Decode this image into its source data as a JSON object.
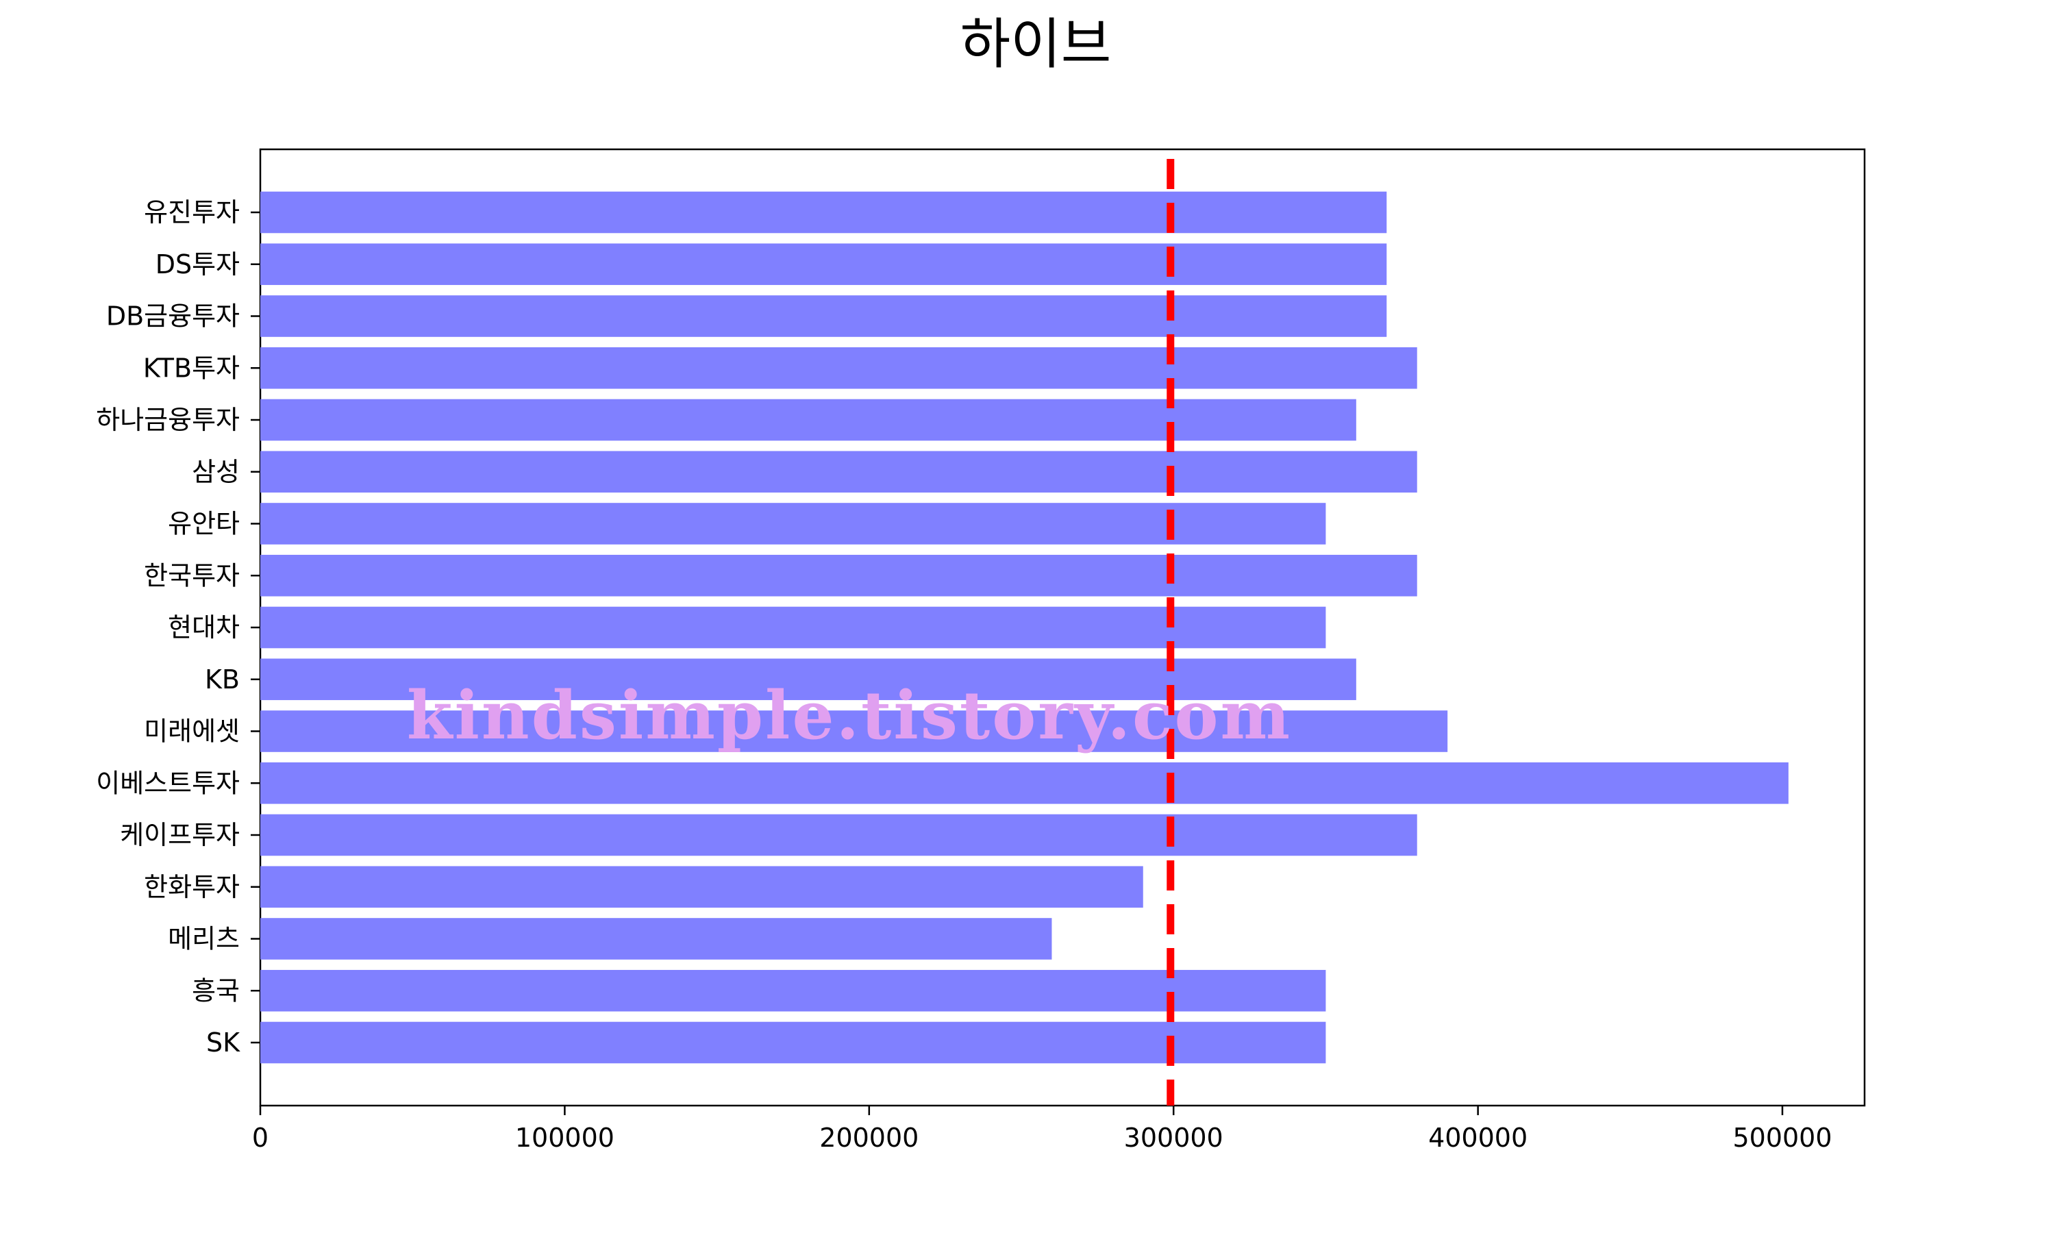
{
  "chart_data": {
    "type": "bar",
    "orientation": "horizontal",
    "title": "하이브",
    "xlabel": "",
    "ylabel": "",
    "categories": [
      "유진투자",
      "DS투자",
      "DB금융투자",
      "KTB투자",
      "하나금융투자",
      "삼성",
      "유안타",
      "한국투자",
      "현대차",
      "KB",
      "미래에셋",
      "이베스트투자",
      "케이프투자",
      "한화투자",
      "메리츠",
      "흥국",
      "SK"
    ],
    "values": [
      370000,
      370000,
      370000,
      380000,
      360000,
      380000,
      350000,
      380000,
      350000,
      360000,
      390000,
      502000,
      380000,
      290000,
      260000,
      350000,
      350000
    ],
    "x_ticks": [
      "0",
      "100000",
      "200000",
      "300000",
      "400000",
      "500000"
    ],
    "xlim": [
      0,
      527000
    ],
    "reference_line": {
      "value": 299000,
      "style": "dashed",
      "color": "#ff0000"
    },
    "bar_color": "#8080ff",
    "grid": false,
    "legend": "none",
    "watermark": "kindsimple.tistory.com",
    "watermark_color": "#e0a0f0"
  }
}
